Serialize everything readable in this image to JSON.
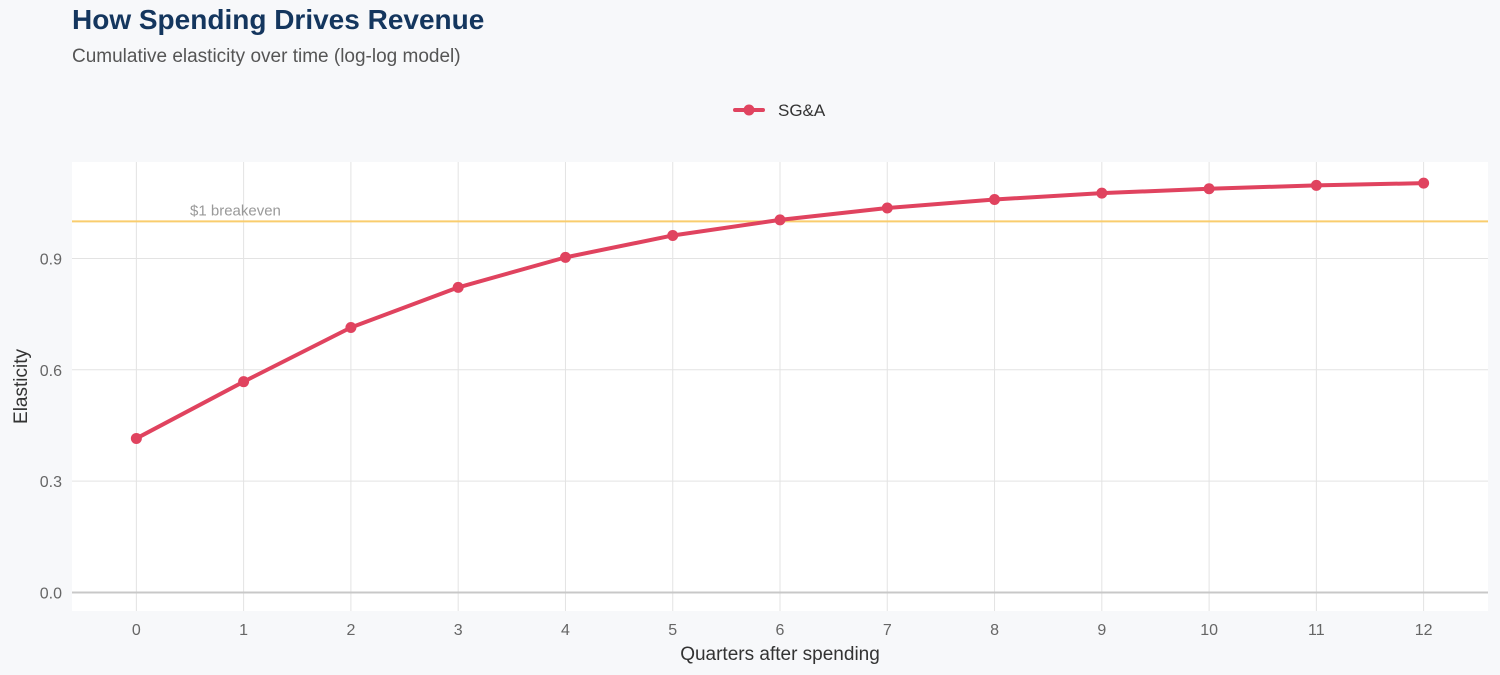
{
  "chart_data": {
    "type": "line",
    "title": "How Spending Drives Revenue",
    "subtitle": "Cumulative elasticity over time (log-log model)",
    "xlabel": "Quarters after spending",
    "ylabel": "Elasticity",
    "x": [
      0,
      1,
      2,
      3,
      4,
      5,
      6,
      7,
      8,
      9,
      10,
      11,
      12
    ],
    "xticks": [
      "0",
      "1",
      "2",
      "3",
      "4",
      "5",
      "6",
      "7",
      "8",
      "9",
      "10",
      "11",
      "12"
    ],
    "yticks": [
      "0.0",
      "0.3",
      "0.6",
      "0.9"
    ],
    "ytick_values": [
      0.0,
      0.3,
      0.6,
      0.9
    ],
    "xlim": [
      -0.6,
      12.6
    ],
    "ylim": [
      -0.05,
      1.16
    ],
    "series": [
      {
        "name": "SG&A",
        "color": "#e0435f",
        "values": [
          0.415,
          0.568,
          0.714,
          0.822,
          0.903,
          0.962,
          1.004,
          1.036,
          1.059,
          1.076,
          1.088,
          1.097,
          1.103
        ]
      }
    ],
    "reference_line": {
      "y": 1.0,
      "label": "$1 breakeven",
      "color": "#f9cd6e"
    },
    "legend_position": "top-center",
    "grid": true
  }
}
